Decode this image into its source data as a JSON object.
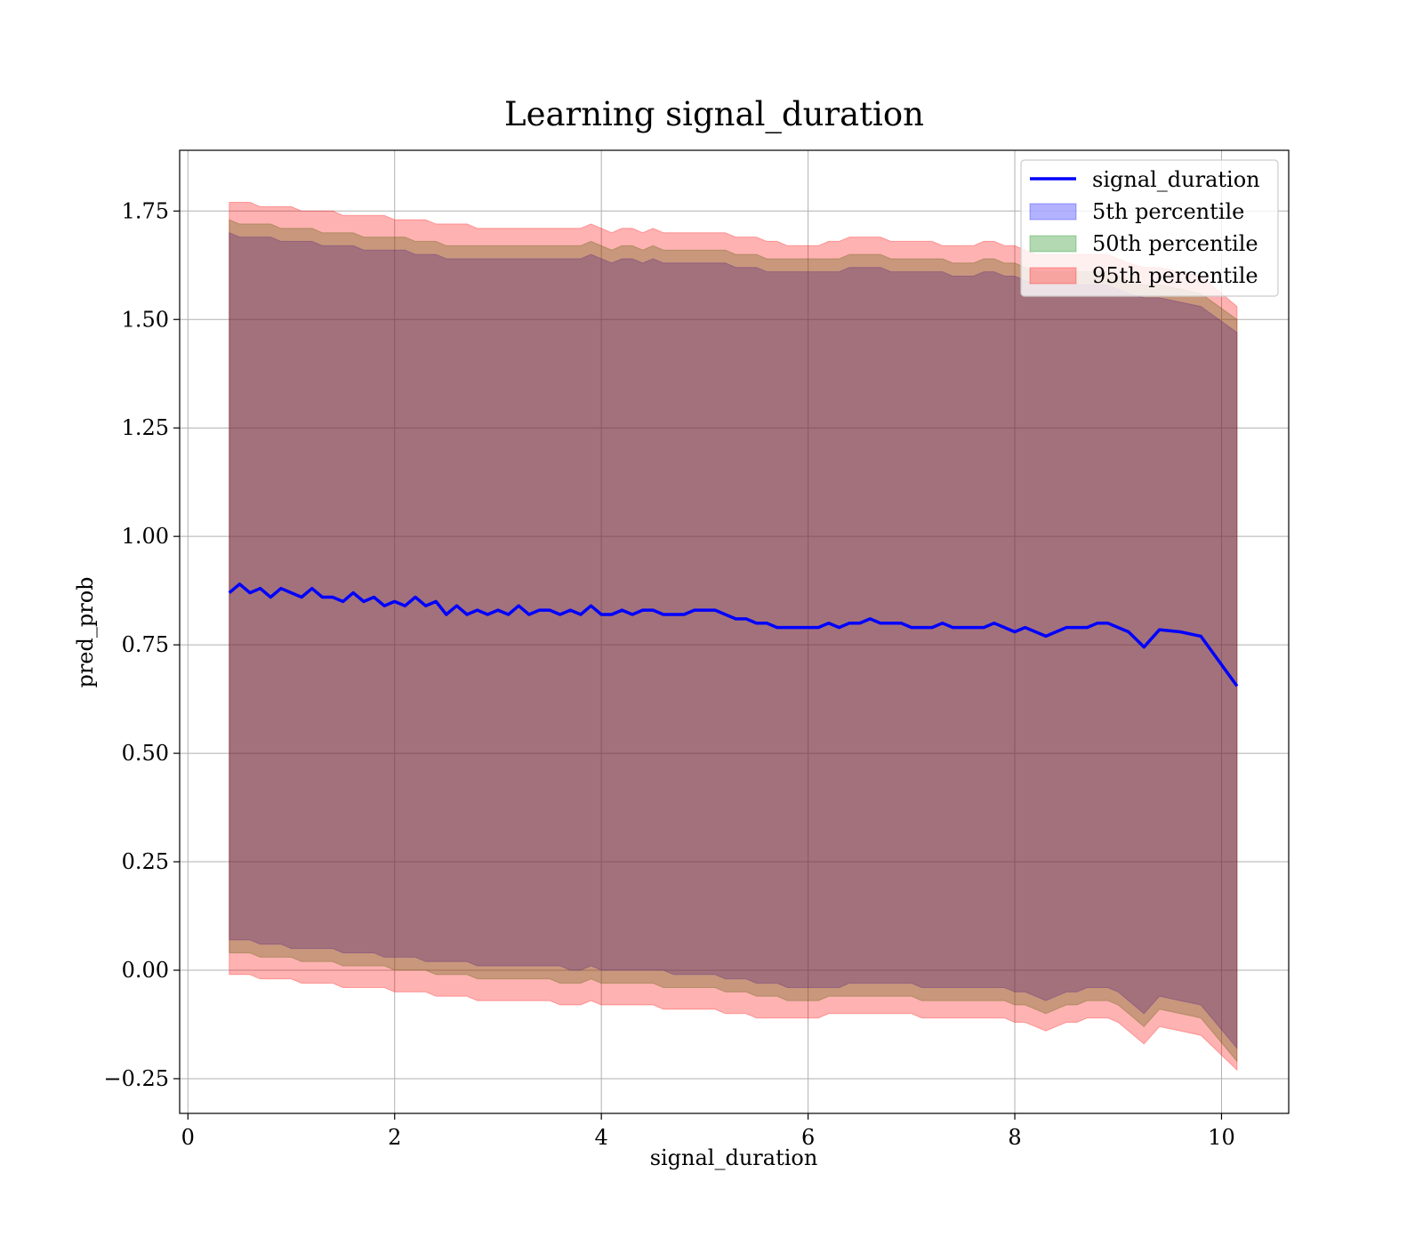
{
  "chart_data": {
    "type": "line",
    "title": "Learning signal_duration",
    "xlabel": "signal_duration",
    "ylabel": "pred_prob",
    "xlim": [
      -0.08,
      10.65
    ],
    "ylim": [
      -0.33,
      1.89
    ],
    "xticks": [
      0,
      2,
      4,
      6,
      8,
      10
    ],
    "yticks": [
      1.75,
      1.5,
      1.25,
      1.0,
      0.75,
      0.5,
      0.25,
      0.0,
      -0.25
    ],
    "xtick_labels": [
      "0",
      "2",
      "4",
      "6",
      "8",
      "10"
    ],
    "ytick_labels": [
      "1.75",
      "1.50",
      "1.25",
      "1.00",
      "0.75",
      "0.50",
      "0.25",
      "0.00",
      "−0.25"
    ],
    "grid": true,
    "legend_position": "top-right",
    "legend": [
      {
        "label": "signal_duration",
        "kind": "line",
        "color": "#0000ff"
      },
      {
        "label": "5th percentile",
        "kind": "band",
        "color": "#0000ff"
      },
      {
        "label": "50th percentile",
        "kind": "band",
        "color": "#008000"
      },
      {
        "label": "95th percentile",
        "kind": "band",
        "color": "#ff0000"
      }
    ],
    "x": [
      0.4,
      0.5,
      0.6,
      0.7,
      0.8,
      0.9,
      1.0,
      1.1,
      1.2,
      1.3,
      1.4,
      1.5,
      1.6,
      1.7,
      1.8,
      1.9,
      2.0,
      2.1,
      2.2,
      2.3,
      2.4,
      2.5,
      2.6,
      2.7,
      2.8,
      2.9,
      3.0,
      3.1,
      3.2,
      3.3,
      3.4,
      3.5,
      3.6,
      3.7,
      3.8,
      3.9,
      4.0,
      4.1,
      4.2,
      4.3,
      4.4,
      4.5,
      4.6,
      4.7,
      4.8,
      4.9,
      5.0,
      5.1,
      5.2,
      5.3,
      5.4,
      5.5,
      5.6,
      5.7,
      5.8,
      5.9,
      6.0,
      6.1,
      6.2,
      6.3,
      6.4,
      6.5,
      6.6,
      6.7,
      6.8,
      6.9,
      7.0,
      7.1,
      7.2,
      7.3,
      7.4,
      7.5,
      7.6,
      7.7,
      7.8,
      7.9,
      8.0,
      8.1,
      8.2,
      8.3,
      8.4,
      8.5,
      8.6,
      8.7,
      8.8,
      8.9,
      9.0,
      9.1,
      9.25,
      9.4,
      9.6,
      9.8,
      10.15
    ],
    "series": [
      {
        "name": "signal_duration",
        "role": "line",
        "color": "#0000ff",
        "values": [
          0.87,
          0.89,
          0.87,
          0.88,
          0.86,
          0.88,
          0.87,
          0.86,
          0.88,
          0.86,
          0.86,
          0.85,
          0.87,
          0.85,
          0.86,
          0.84,
          0.85,
          0.84,
          0.86,
          0.84,
          0.85,
          0.82,
          0.84,
          0.82,
          0.83,
          0.82,
          0.83,
          0.82,
          0.84,
          0.82,
          0.83,
          0.83,
          0.82,
          0.83,
          0.82,
          0.84,
          0.82,
          0.82,
          0.83,
          0.82,
          0.83,
          0.83,
          0.82,
          0.82,
          0.82,
          0.83,
          0.83,
          0.83,
          0.82,
          0.81,
          0.81,
          0.8,
          0.8,
          0.79,
          0.79,
          0.79,
          0.79,
          0.79,
          0.8,
          0.79,
          0.8,
          0.8,
          0.81,
          0.8,
          0.8,
          0.8,
          0.79,
          0.79,
          0.79,
          0.8,
          0.79,
          0.79,
          0.79,
          0.79,
          0.8,
          0.79,
          0.78,
          0.79,
          0.78,
          0.77,
          0.78,
          0.79,
          0.79,
          0.79,
          0.8,
          0.8,
          0.79,
          0.78,
          0.745,
          0.785,
          0.78,
          0.77,
          0.655
        ]
      },
      {
        "name": "5th percentile",
        "role": "band",
        "color": "#0000ff",
        "low": [
          0.07,
          0.07,
          0.07,
          0.06,
          0.06,
          0.06,
          0.05,
          0.05,
          0.05,
          0.05,
          0.05,
          0.04,
          0.04,
          0.04,
          0.04,
          0.03,
          0.03,
          0.03,
          0.03,
          0.02,
          0.02,
          0.02,
          0.02,
          0.02,
          0.01,
          0.01,
          0.01,
          0.01,
          0.01,
          0.01,
          0.01,
          0.01,
          0.01,
          0.0,
          0.0,
          0.01,
          0.0,
          0.0,
          0.0,
          0.0,
          0.0,
          0.0,
          0.0,
          -0.01,
          -0.01,
          -0.01,
          -0.01,
          -0.01,
          -0.02,
          -0.02,
          -0.02,
          -0.03,
          -0.03,
          -0.03,
          -0.04,
          -0.04,
          -0.04,
          -0.04,
          -0.04,
          -0.04,
          -0.03,
          -0.03,
          -0.03,
          -0.03,
          -0.03,
          -0.03,
          -0.03,
          -0.04,
          -0.04,
          -0.04,
          -0.04,
          -0.04,
          -0.04,
          -0.04,
          -0.04,
          -0.04,
          -0.05,
          -0.05,
          -0.06,
          -0.07,
          -0.06,
          -0.05,
          -0.05,
          -0.04,
          -0.04,
          -0.04,
          -0.05,
          -0.07,
          -0.1,
          -0.06,
          -0.07,
          -0.08,
          -0.18
        ],
        "high": [
          1.7,
          1.69,
          1.69,
          1.69,
          1.69,
          1.68,
          1.68,
          1.68,
          1.68,
          1.67,
          1.67,
          1.67,
          1.67,
          1.66,
          1.66,
          1.66,
          1.66,
          1.66,
          1.65,
          1.65,
          1.65,
          1.64,
          1.64,
          1.64,
          1.64,
          1.64,
          1.64,
          1.64,
          1.64,
          1.64,
          1.64,
          1.64,
          1.64,
          1.64,
          1.64,
          1.65,
          1.64,
          1.63,
          1.64,
          1.64,
          1.63,
          1.64,
          1.63,
          1.63,
          1.63,
          1.63,
          1.63,
          1.63,
          1.63,
          1.62,
          1.62,
          1.62,
          1.61,
          1.61,
          1.61,
          1.61,
          1.61,
          1.61,
          1.61,
          1.61,
          1.62,
          1.62,
          1.62,
          1.62,
          1.61,
          1.61,
          1.61,
          1.61,
          1.61,
          1.61,
          1.6,
          1.6,
          1.6,
          1.61,
          1.61,
          1.6,
          1.6,
          1.59,
          1.58,
          1.58,
          1.58,
          1.58,
          1.58,
          1.58,
          1.58,
          1.58,
          1.57,
          1.56,
          1.55,
          1.55,
          1.54,
          1.53,
          1.47
        ]
      },
      {
        "name": "50th percentile",
        "role": "band",
        "color": "#008000",
        "low": [
          0.04,
          0.04,
          0.04,
          0.03,
          0.03,
          0.03,
          0.03,
          0.02,
          0.02,
          0.02,
          0.02,
          0.01,
          0.01,
          0.01,
          0.01,
          0.01,
          0.0,
          0.0,
          0.0,
          0.0,
          -0.01,
          -0.01,
          -0.01,
          -0.01,
          -0.02,
          -0.02,
          -0.02,
          -0.02,
          -0.02,
          -0.02,
          -0.02,
          -0.02,
          -0.03,
          -0.03,
          -0.03,
          -0.02,
          -0.03,
          -0.03,
          -0.03,
          -0.03,
          -0.03,
          -0.03,
          -0.04,
          -0.04,
          -0.04,
          -0.04,
          -0.04,
          -0.04,
          -0.05,
          -0.05,
          -0.05,
          -0.06,
          -0.06,
          -0.06,
          -0.07,
          -0.07,
          -0.07,
          -0.07,
          -0.06,
          -0.06,
          -0.06,
          -0.06,
          -0.06,
          -0.06,
          -0.06,
          -0.06,
          -0.06,
          -0.07,
          -0.07,
          -0.07,
          -0.07,
          -0.07,
          -0.07,
          -0.07,
          -0.07,
          -0.07,
          -0.08,
          -0.08,
          -0.09,
          -0.1,
          -0.09,
          -0.08,
          -0.08,
          -0.07,
          -0.07,
          -0.07,
          -0.08,
          -0.1,
          -0.13,
          -0.09,
          -0.1,
          -0.11,
          -0.21
        ],
        "high": [
          1.73,
          1.72,
          1.72,
          1.72,
          1.72,
          1.71,
          1.71,
          1.71,
          1.71,
          1.7,
          1.7,
          1.7,
          1.7,
          1.69,
          1.69,
          1.69,
          1.69,
          1.69,
          1.68,
          1.68,
          1.68,
          1.67,
          1.67,
          1.67,
          1.67,
          1.67,
          1.67,
          1.67,
          1.67,
          1.67,
          1.67,
          1.67,
          1.67,
          1.67,
          1.67,
          1.68,
          1.67,
          1.66,
          1.67,
          1.67,
          1.66,
          1.67,
          1.66,
          1.66,
          1.66,
          1.66,
          1.66,
          1.66,
          1.66,
          1.65,
          1.65,
          1.65,
          1.64,
          1.64,
          1.64,
          1.64,
          1.64,
          1.64,
          1.64,
          1.64,
          1.65,
          1.65,
          1.65,
          1.65,
          1.64,
          1.64,
          1.64,
          1.64,
          1.64,
          1.64,
          1.63,
          1.63,
          1.63,
          1.64,
          1.64,
          1.63,
          1.63,
          1.62,
          1.61,
          1.61,
          1.61,
          1.61,
          1.61,
          1.61,
          1.61,
          1.61,
          1.6,
          1.59,
          1.58,
          1.58,
          1.57,
          1.56,
          1.5
        ]
      },
      {
        "name": "95th percentile",
        "role": "band",
        "color": "#ff0000",
        "low": [
          -0.01,
          -0.01,
          -0.01,
          -0.02,
          -0.02,
          -0.02,
          -0.02,
          -0.03,
          -0.03,
          -0.03,
          -0.03,
          -0.04,
          -0.04,
          -0.04,
          -0.04,
          -0.04,
          -0.05,
          -0.05,
          -0.05,
          -0.05,
          -0.06,
          -0.06,
          -0.06,
          -0.06,
          -0.07,
          -0.07,
          -0.07,
          -0.07,
          -0.07,
          -0.07,
          -0.07,
          -0.07,
          -0.08,
          -0.08,
          -0.08,
          -0.07,
          -0.08,
          -0.08,
          -0.08,
          -0.08,
          -0.08,
          -0.08,
          -0.09,
          -0.09,
          -0.09,
          -0.09,
          -0.09,
          -0.09,
          -0.1,
          -0.1,
          -0.1,
          -0.11,
          -0.11,
          -0.11,
          -0.11,
          -0.11,
          -0.11,
          -0.11,
          -0.1,
          -0.1,
          -0.1,
          -0.1,
          -0.1,
          -0.1,
          -0.1,
          -0.1,
          -0.1,
          -0.11,
          -0.11,
          -0.11,
          -0.11,
          -0.11,
          -0.11,
          -0.11,
          -0.11,
          -0.11,
          -0.12,
          -0.12,
          -0.13,
          -0.14,
          -0.13,
          -0.12,
          -0.12,
          -0.11,
          -0.11,
          -0.11,
          -0.12,
          -0.14,
          -0.17,
          -0.13,
          -0.14,
          -0.15,
          -0.23
        ],
        "high": [
          1.77,
          1.77,
          1.77,
          1.76,
          1.76,
          1.76,
          1.76,
          1.75,
          1.75,
          1.75,
          1.75,
          1.74,
          1.74,
          1.74,
          1.74,
          1.74,
          1.73,
          1.73,
          1.73,
          1.73,
          1.72,
          1.72,
          1.72,
          1.72,
          1.71,
          1.71,
          1.71,
          1.71,
          1.71,
          1.71,
          1.71,
          1.71,
          1.71,
          1.71,
          1.71,
          1.72,
          1.71,
          1.7,
          1.71,
          1.71,
          1.7,
          1.71,
          1.7,
          1.7,
          1.7,
          1.7,
          1.7,
          1.7,
          1.7,
          1.69,
          1.69,
          1.69,
          1.68,
          1.68,
          1.67,
          1.67,
          1.67,
          1.67,
          1.68,
          1.68,
          1.69,
          1.69,
          1.69,
          1.69,
          1.68,
          1.68,
          1.68,
          1.68,
          1.68,
          1.67,
          1.67,
          1.67,
          1.67,
          1.68,
          1.68,
          1.67,
          1.67,
          1.66,
          1.65,
          1.65,
          1.65,
          1.65,
          1.65,
          1.65,
          1.65,
          1.65,
          1.64,
          1.63,
          1.62,
          1.62,
          1.61,
          1.6,
          1.53
        ]
      }
    ]
  }
}
